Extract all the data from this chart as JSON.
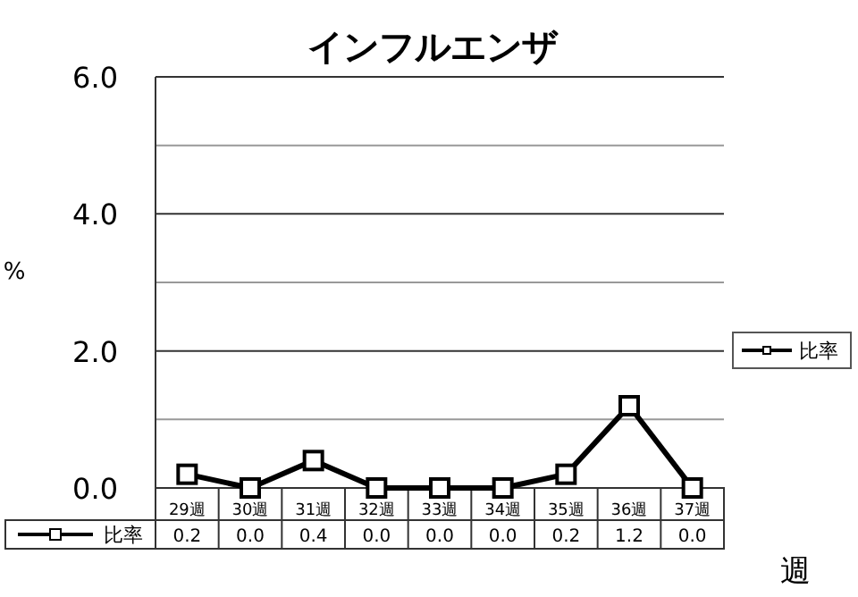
{
  "chart_data": {
    "type": "line",
    "title": "インフルエンザ",
    "xlabel": "週",
    "ylabel": "%",
    "categories": [
      "29週",
      "30週",
      "31週",
      "32週",
      "33週",
      "34週",
      "35週",
      "36週",
      "37週"
    ],
    "series": [
      {
        "name": "比率",
        "color": "#000000",
        "values": [
          0.2,
          0.0,
          0.4,
          0.0,
          0.0,
          0.0,
          0.2,
          1.2,
          0.0
        ],
        "value_labels": [
          "0.2",
          "0.0",
          "0.4",
          "0.0",
          "0.0",
          "0.0",
          "0.2",
          "1.2",
          "0.0"
        ]
      }
    ],
    "ylim": [
      0,
      6
    ],
    "yticks": [
      {
        "value": 0,
        "label": "0.0"
      },
      {
        "value": 1,
        "label": null
      },
      {
        "value": 2,
        "label": "2.0"
      },
      {
        "value": 3,
        "label": null
      },
      {
        "value": 4,
        "label": "4.0"
      },
      {
        "value": 5,
        "label": null
      },
      {
        "value": 6,
        "label": "6.0"
      }
    ],
    "grid": true,
    "legend": "bottom left",
    "marker": "square"
  }
}
